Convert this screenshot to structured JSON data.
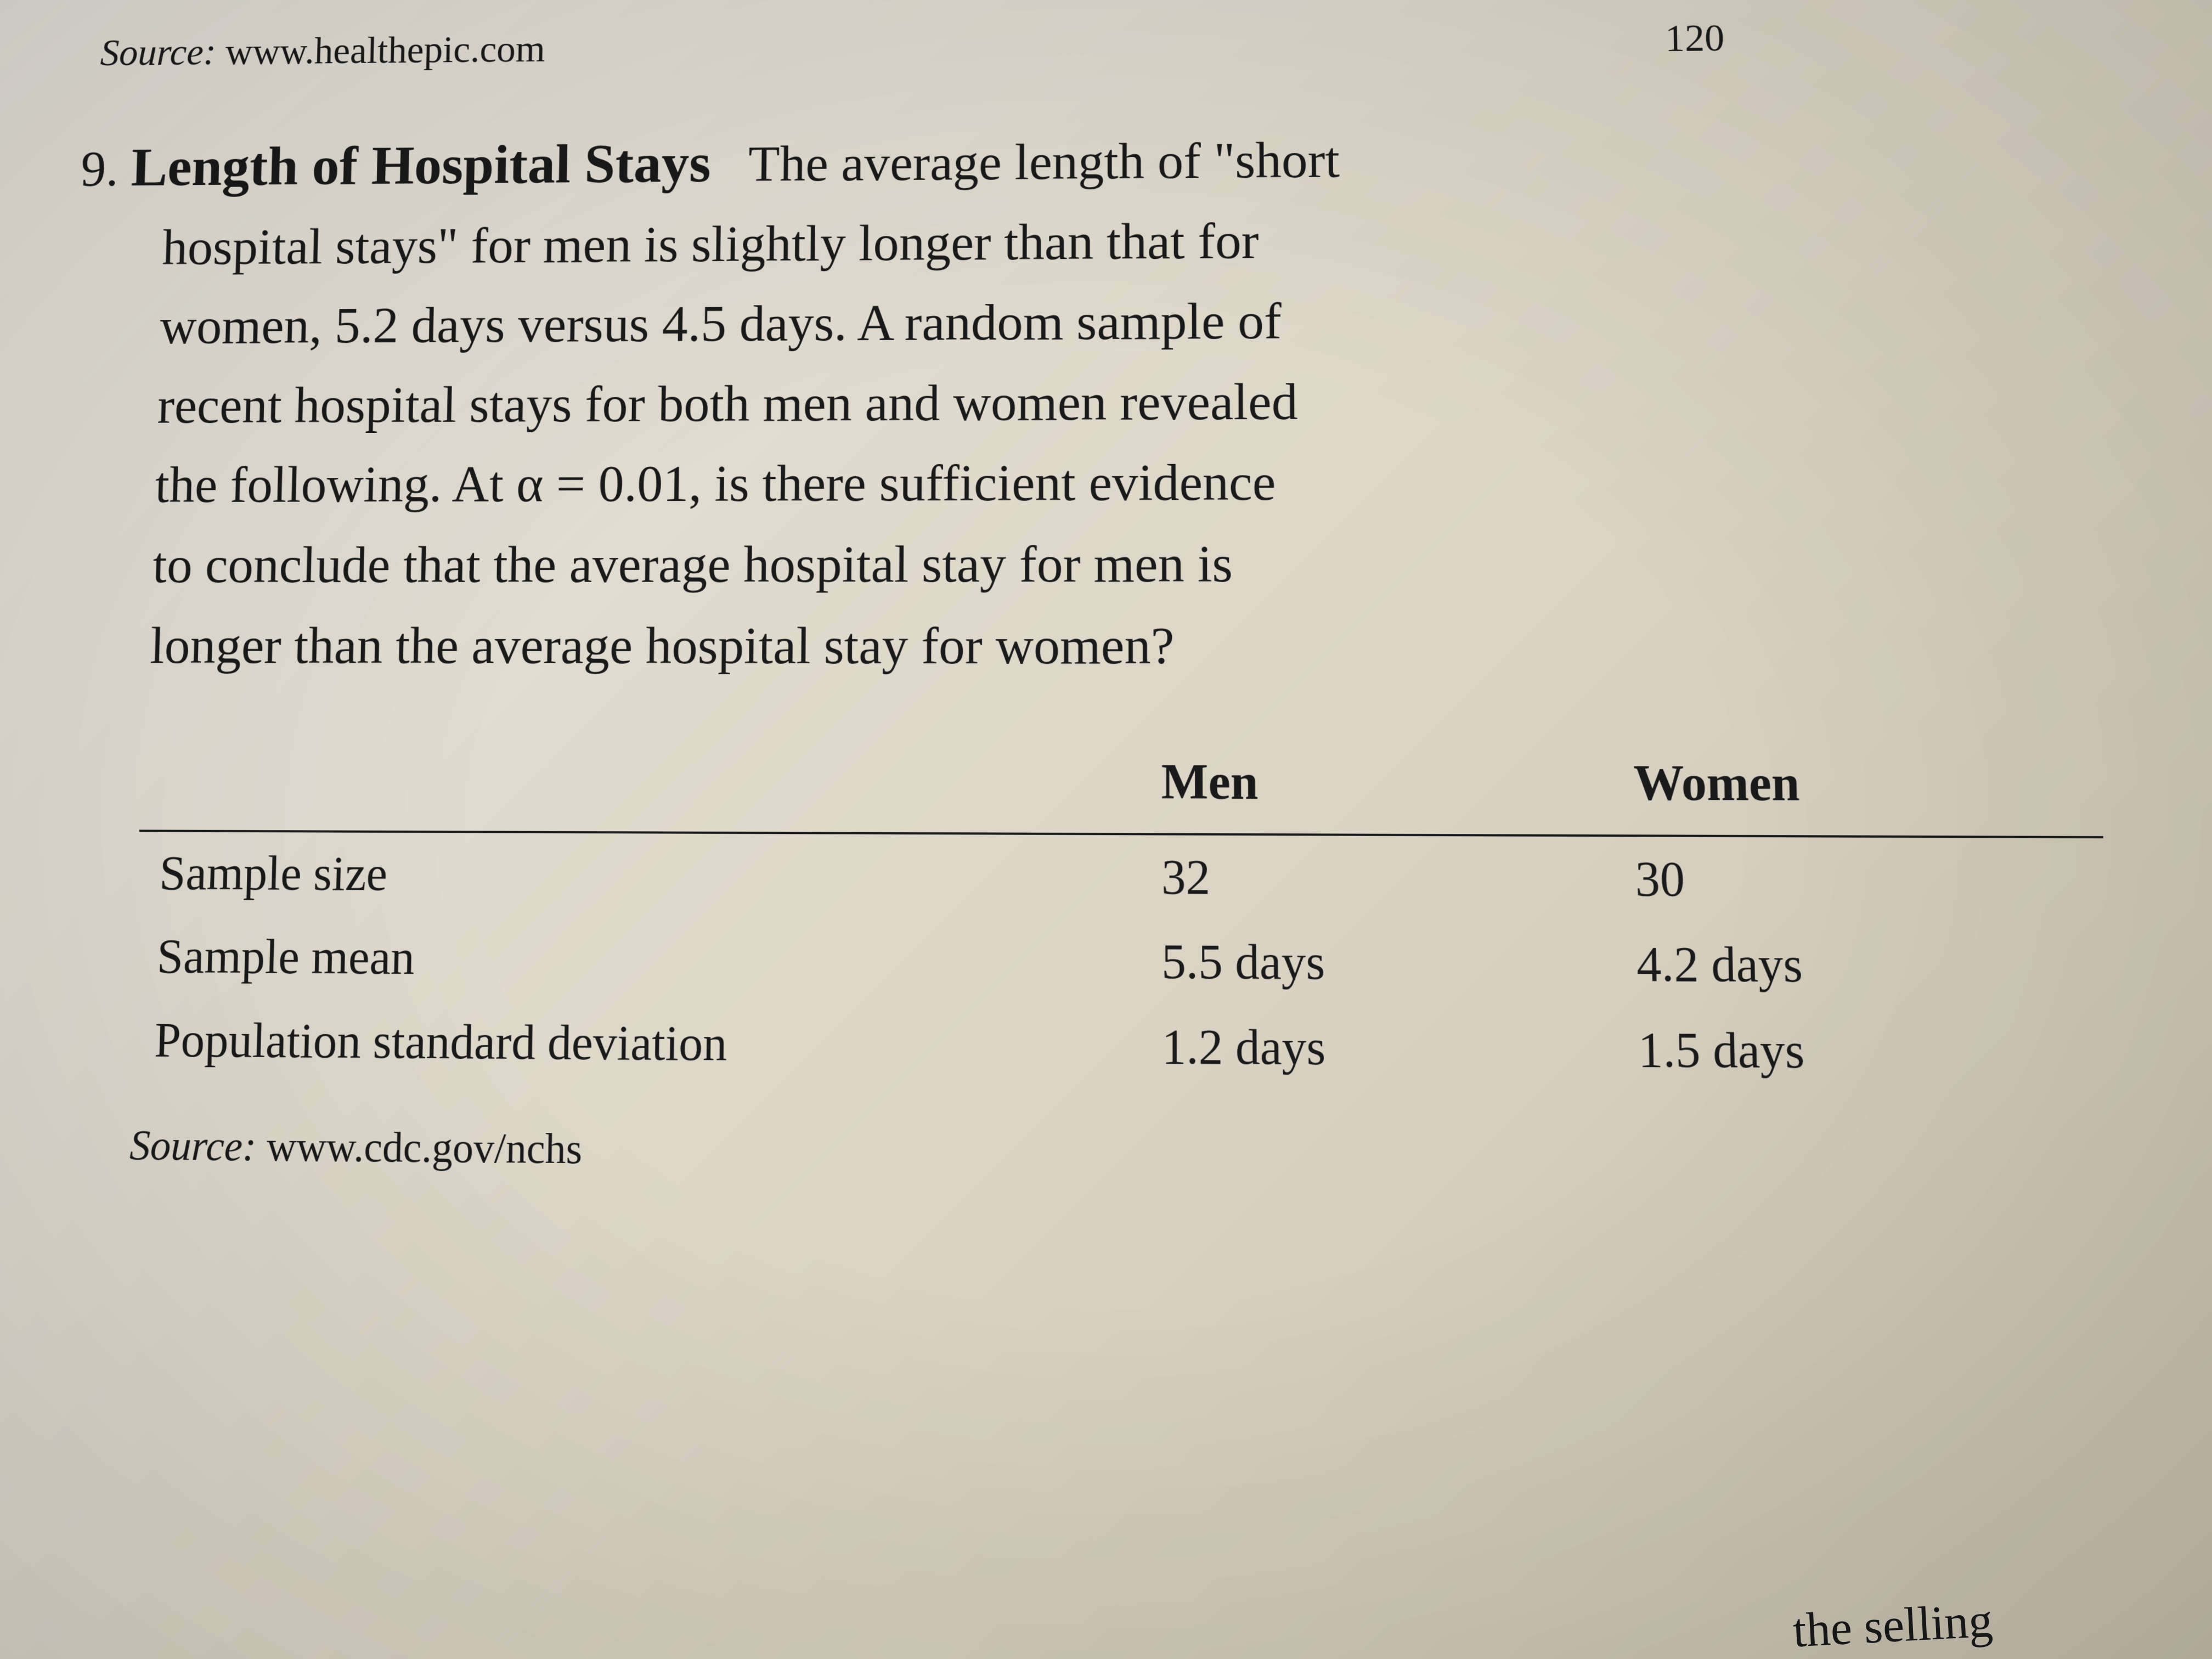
{
  "top_source": {
    "label": "Source:",
    "url": "www.healthepic.com"
  },
  "page_number": "120",
  "problem": {
    "number": "9.",
    "title": "Length of Hospital Stays",
    "text_line1": "The average length of \"short",
    "text_line2": "hospital stays\" for men is slightly longer than that for",
    "text_line3": "women, 5.2 days versus 4.5 days. A random sample of",
    "text_line4": "recent hospital stays for both men and women revealed",
    "text_line5": "the following. At α = 0.01, is there sufficient evidence",
    "text_line6": "to conclude that the average hospital stay for men is",
    "text_line7": "longer than the average hospital stay for women?"
  },
  "table": {
    "headers": {
      "blank": "",
      "men": "Men",
      "women": "Women"
    },
    "rows": [
      {
        "label": "Sample size",
        "men": "32",
        "women": "30"
      },
      {
        "label": "Sample mean",
        "men": "5.5 days",
        "women": "4.2 days"
      },
      {
        "label": "Population standard deviation",
        "men": "1.2 days",
        "women": "1.5 days"
      }
    ]
  },
  "bottom_source": {
    "label": "Source:",
    "url": "www.cdc.gov/nchs"
  },
  "cutoff": "the selling",
  "styling": {
    "background_gradient": [
      "#e8e4dc",
      "#ddd6c8",
      "#c8c0b0"
    ],
    "text_color": "#1a1a1a",
    "border_color": "#1a1a1a",
    "font_family": "Times New Roman",
    "body_fontsize": 96,
    "title_fontsize": 104,
    "table_fontsize": 90,
    "source_fontsize": 76
  }
}
